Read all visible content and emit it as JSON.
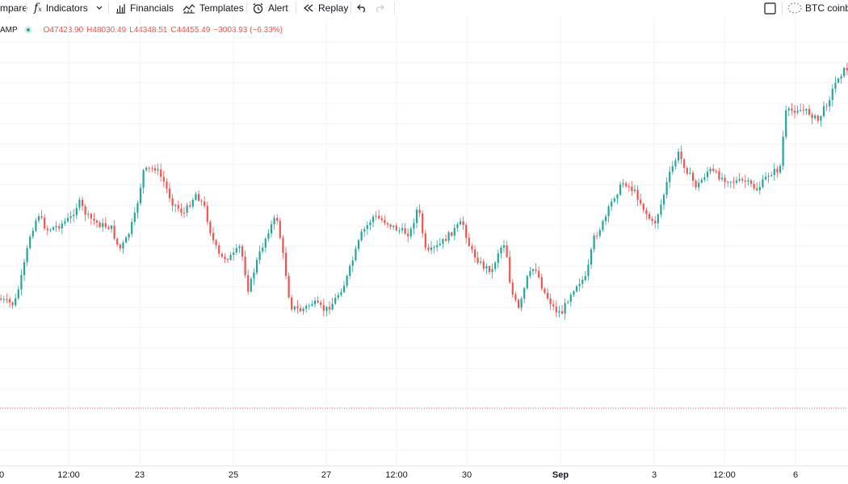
{
  "toolbar": {
    "compare_label": "mpare",
    "indicators_label": "Indicators",
    "financials_label": "Financials",
    "templates_label": "Templates",
    "alert_label": "Alert",
    "replay_label": "Replay",
    "symbol_search_label": "BTC coinba"
  },
  "legend": {
    "symbol_fragment": "AMP",
    "o_key": "O",
    "o_val": "47423.90",
    "h_key": "H",
    "h_val": "48030.49",
    "l_key": "L",
    "l_val": "44348.51",
    "c_key": "C",
    "c_val": "44455.49",
    "change": "−3003.93 (−6.33%)"
  },
  "xaxis": {
    "labels": [
      {
        "text": "0",
        "bold": false
      },
      {
        "text": "12:00",
        "bold": false
      },
      {
        "text": "23",
        "bold": false
      },
      {
        "text": "25",
        "bold": false
      },
      {
        "text": "27",
        "bold": false
      },
      {
        "text": "12:00",
        "bold": false
      },
      {
        "text": "30",
        "bold": false
      },
      {
        "text": "Sep",
        "bold": true
      },
      {
        "text": "3",
        "bold": false
      },
      {
        "text": "12:00",
        "bold": false
      },
      {
        "text": "6",
        "bold": false
      }
    ]
  },
  "colors": {
    "up": "#26a69a",
    "down": "#ef5350",
    "grid": "#f0f3fa",
    "price_line": "#ef5350"
  },
  "icons": {
    "indicators": "fx-icon",
    "financials": "bar-chart-icon",
    "templates": "templates-icon",
    "alert": "alarm-clock-icon",
    "replay": "rewind-icon",
    "undo": "undo-icon",
    "redo": "redo-icon",
    "fullscreen": "square-icon",
    "symbol": "dashed-circle-icon"
  }
}
